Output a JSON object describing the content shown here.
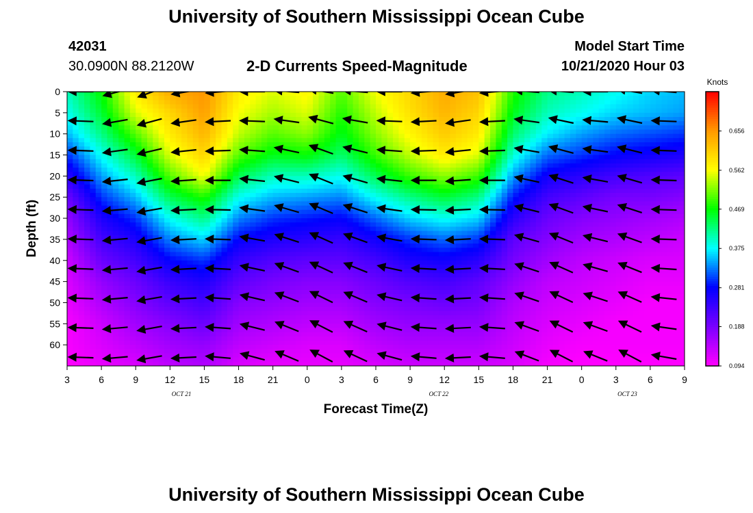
{
  "header": {
    "title": "University of Southern Mississippi Ocean Cube",
    "station_id": "42031",
    "station_position": "30.0900N 88.2120W",
    "subtitle": "2-D Currents Speed-Magnitude",
    "model_start_label": "Model Start Time",
    "model_start_value": "10/21/2020 Hour 03"
  },
  "footer": {
    "title": "University of Southern Mississippi Ocean Cube"
  },
  "chart_data": {
    "type": "heatmap",
    "xlabel": "Forecast Time(Z)",
    "ylabel": "Depth (ft)",
    "xlim_hours": [
      0,
      54
    ],
    "ylim": [
      0,
      65
    ],
    "y_inverted": true,
    "x_ticks": [
      "3",
      "6",
      "9",
      "12",
      "15",
      "18",
      "21",
      "0",
      "3",
      "6",
      "9",
      "12",
      "15",
      "18",
      "21",
      "0",
      "3",
      "6",
      "9"
    ],
    "y_ticks": [
      0,
      5,
      10,
      15,
      20,
      25,
      30,
      35,
      40,
      45,
      50,
      55,
      60
    ],
    "day_labels": [
      {
        "label": "OCT  21",
        "hour": 10
      },
      {
        "label": "OCT  22",
        "hour": 32.5
      },
      {
        "label": "OCT  23",
        "hour": 49
      }
    ],
    "colorbar": {
      "unit": "Knots",
      "min": 0.094,
      "max": 0.75,
      "tick_values": [
        "0.656",
        "0.562",
        "0.469",
        "0.375",
        "0.281",
        "0.188",
        "0.094"
      ],
      "colors": [
        "#ff00ff",
        "#7a00ff",
        "#0000ff",
        "#00ffff",
        "#00ff00",
        "#ffff00",
        "#ff9900",
        "#ff0000"
      ]
    },
    "speed_grid": {
      "x_hours": [
        0,
        3,
        6,
        9,
        12,
        15,
        18,
        21,
        24,
        27,
        30,
        33,
        36,
        39,
        42,
        45,
        48,
        51,
        54
      ],
      "depths": [
        0,
        5,
        10,
        15,
        20,
        25,
        30,
        35,
        40,
        45,
        50,
        55,
        60,
        65
      ],
      "values": [
        [
          0.4,
          0.47,
          0.58,
          0.64,
          0.66,
          0.58,
          0.55,
          0.57,
          0.5,
          0.56,
          0.6,
          0.64,
          0.62,
          0.48,
          0.42,
          0.4,
          0.38,
          0.36,
          0.35
        ],
        [
          0.38,
          0.45,
          0.55,
          0.6,
          0.65,
          0.56,
          0.53,
          0.55,
          0.48,
          0.54,
          0.59,
          0.63,
          0.6,
          0.46,
          0.4,
          0.38,
          0.36,
          0.35,
          0.34
        ],
        [
          0.35,
          0.42,
          0.5,
          0.58,
          0.63,
          0.54,
          0.5,
          0.52,
          0.46,
          0.52,
          0.57,
          0.61,
          0.58,
          0.43,
          0.37,
          0.34,
          0.32,
          0.31,
          0.3
        ],
        [
          0.3,
          0.38,
          0.45,
          0.55,
          0.6,
          0.5,
          0.46,
          0.47,
          0.43,
          0.49,
          0.54,
          0.58,
          0.55,
          0.39,
          0.32,
          0.3,
          0.28,
          0.27,
          0.26
        ],
        [
          0.25,
          0.34,
          0.4,
          0.5,
          0.56,
          0.44,
          0.4,
          0.4,
          0.38,
          0.44,
          0.49,
          0.52,
          0.49,
          0.34,
          0.27,
          0.25,
          0.23,
          0.22,
          0.21
        ],
        [
          0.2,
          0.3,
          0.35,
          0.44,
          0.48,
          0.38,
          0.35,
          0.34,
          0.33,
          0.38,
          0.42,
          0.45,
          0.42,
          0.29,
          0.23,
          0.21,
          0.19,
          0.19,
          0.18
        ],
        [
          0.17,
          0.26,
          0.3,
          0.38,
          0.42,
          0.33,
          0.3,
          0.29,
          0.28,
          0.32,
          0.36,
          0.38,
          0.36,
          0.25,
          0.2,
          0.18,
          0.17,
          0.16,
          0.15
        ],
        [
          0.15,
          0.23,
          0.26,
          0.33,
          0.36,
          0.28,
          0.26,
          0.25,
          0.24,
          0.27,
          0.3,
          0.32,
          0.3,
          0.21,
          0.18,
          0.16,
          0.15,
          0.14,
          0.13
        ],
        [
          0.13,
          0.2,
          0.23,
          0.28,
          0.3,
          0.24,
          0.22,
          0.21,
          0.21,
          0.23,
          0.26,
          0.27,
          0.25,
          0.19,
          0.16,
          0.14,
          0.13,
          0.12,
          0.12
        ],
        [
          0.12,
          0.17,
          0.2,
          0.24,
          0.26,
          0.21,
          0.19,
          0.18,
          0.18,
          0.2,
          0.22,
          0.23,
          0.21,
          0.17,
          0.14,
          0.13,
          0.12,
          0.11,
          0.11
        ],
        [
          0.11,
          0.15,
          0.18,
          0.21,
          0.23,
          0.18,
          0.17,
          0.16,
          0.16,
          0.18,
          0.19,
          0.2,
          0.19,
          0.15,
          0.13,
          0.12,
          0.11,
          0.1,
          0.1
        ],
        [
          0.1,
          0.13,
          0.16,
          0.18,
          0.2,
          0.16,
          0.15,
          0.14,
          0.14,
          0.16,
          0.17,
          0.17,
          0.17,
          0.14,
          0.12,
          0.11,
          0.1,
          0.1,
          0.1
        ],
        [
          0.1,
          0.12,
          0.14,
          0.16,
          0.17,
          0.14,
          0.13,
          0.12,
          0.12,
          0.14,
          0.15,
          0.15,
          0.15,
          0.13,
          0.11,
          0.1,
          0.1,
          0.1,
          0.1
        ],
        [
          0.094,
          0.11,
          0.12,
          0.14,
          0.15,
          0.12,
          0.11,
          0.11,
          0.11,
          0.12,
          0.13,
          0.13,
          0.13,
          0.12,
          0.1,
          0.094,
          0.094,
          0.094,
          0.094
        ]
      ]
    },
    "vectors": {
      "x_hours": [
        1.5,
        4.5,
        7.5,
        10.5,
        13.5,
        16.5,
        19.5,
        22.5,
        25.5,
        28.5,
        31.5,
        34.5,
        37.5,
        40.5,
        43.5,
        46.5,
        49.5,
        52.5
      ],
      "depths": [
        0,
        7,
        14,
        21,
        28,
        35,
        42,
        49,
        56,
        63
      ],
      "direction_deg": [
        [
          180,
          195,
          200,
          190,
          185,
          180,
          175,
          170,
          175,
          180,
          185,
          190,
          185,
          175,
          175,
          180,
          170,
          175
        ],
        [
          178,
          190,
          195,
          188,
          183,
          178,
          172,
          165,
          170,
          178,
          183,
          188,
          183,
          172,
          168,
          175,
          168,
          178
        ],
        [
          178,
          188,
          193,
          186,
          182,
          176,
          168,
          160,
          166,
          176,
          182,
          186,
          182,
          170,
          165,
          172,
          166,
          178
        ],
        [
          178,
          186,
          191,
          184,
          180,
          174,
          166,
          158,
          164,
          174,
          180,
          184,
          180,
          168,
          162,
          170,
          164,
          178
        ],
        [
          178,
          185,
          190,
          183,
          179,
          172,
          164,
          157,
          162,
          172,
          179,
          183,
          179,
          166,
          160,
          168,
          162,
          178
        ],
        [
          178,
          185,
          190,
          183,
          178,
          170,
          162,
          156,
          160,
          170,
          178,
          183,
          178,
          164,
          158,
          166,
          160,
          178
        ],
        [
          178,
          185,
          190,
          183,
          177,
          168,
          160,
          155,
          158,
          168,
          177,
          183,
          177,
          162,
          156,
          164,
          158,
          176
        ],
        [
          178,
          185,
          190,
          183,
          176,
          167,
          159,
          154,
          157,
          167,
          176,
          183,
          176,
          161,
          155,
          162,
          156,
          174
        ],
        [
          178,
          185,
          190,
          183,
          176,
          166,
          158,
          153,
          156,
          166,
          176,
          183,
          176,
          160,
          154,
          160,
          154,
          172
        ],
        [
          178,
          185,
          190,
          183,
          175,
          165,
          157,
          152,
          155,
          165,
          175,
          183,
          175,
          159,
          153,
          158,
          152,
          170
        ]
      ]
    }
  }
}
